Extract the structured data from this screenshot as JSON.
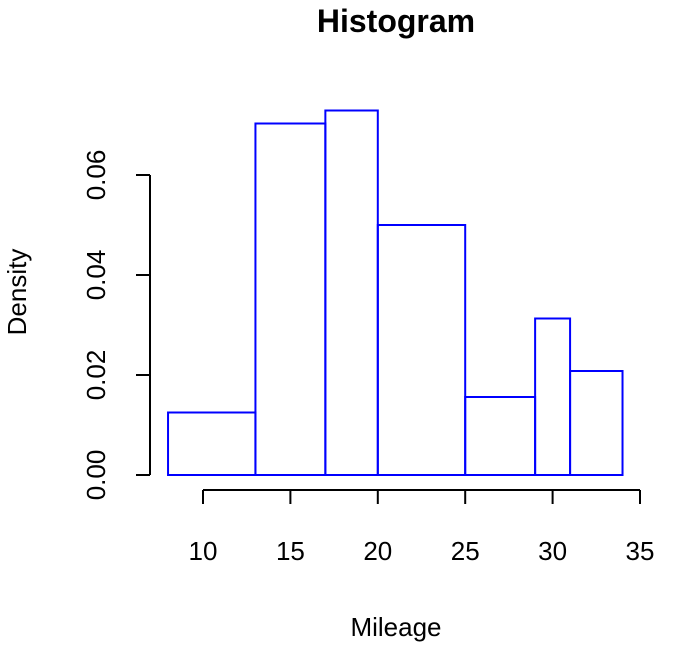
{
  "chart_data": {
    "type": "bar",
    "title": "Histogram",
    "xlabel": "Mileage",
    "ylabel": "Density",
    "xlim": [
      8,
      34
    ],
    "ylim": [
      0,
      0.07
    ],
    "x_ticks": [
      10,
      15,
      20,
      25,
      30,
      35
    ],
    "y_ticks": [
      0.0,
      0.02,
      0.04,
      0.06
    ],
    "x_tick_labels": [
      "10",
      "15",
      "20",
      "25",
      "30",
      "35"
    ],
    "y_tick_labels": [
      "0.00",
      "0.02",
      "0.04",
      "0.06"
    ],
    "grid": false,
    "bar_color": "#0000ff",
    "bins": [
      {
        "x0": 8,
        "x1": 13,
        "density": 0.0125
      },
      {
        "x0": 13,
        "x1": 17,
        "density": 0.0703
      },
      {
        "x0": 17,
        "x1": 20,
        "density": 0.0729
      },
      {
        "x0": 20,
        "x1": 25,
        "density": 0.05
      },
      {
        "x0": 25,
        "x1": 29,
        "density": 0.0156
      },
      {
        "x0": 29,
        "x1": 31,
        "density": 0.0313
      },
      {
        "x0": 31,
        "x1": 34,
        "density": 0.0208
      }
    ]
  }
}
